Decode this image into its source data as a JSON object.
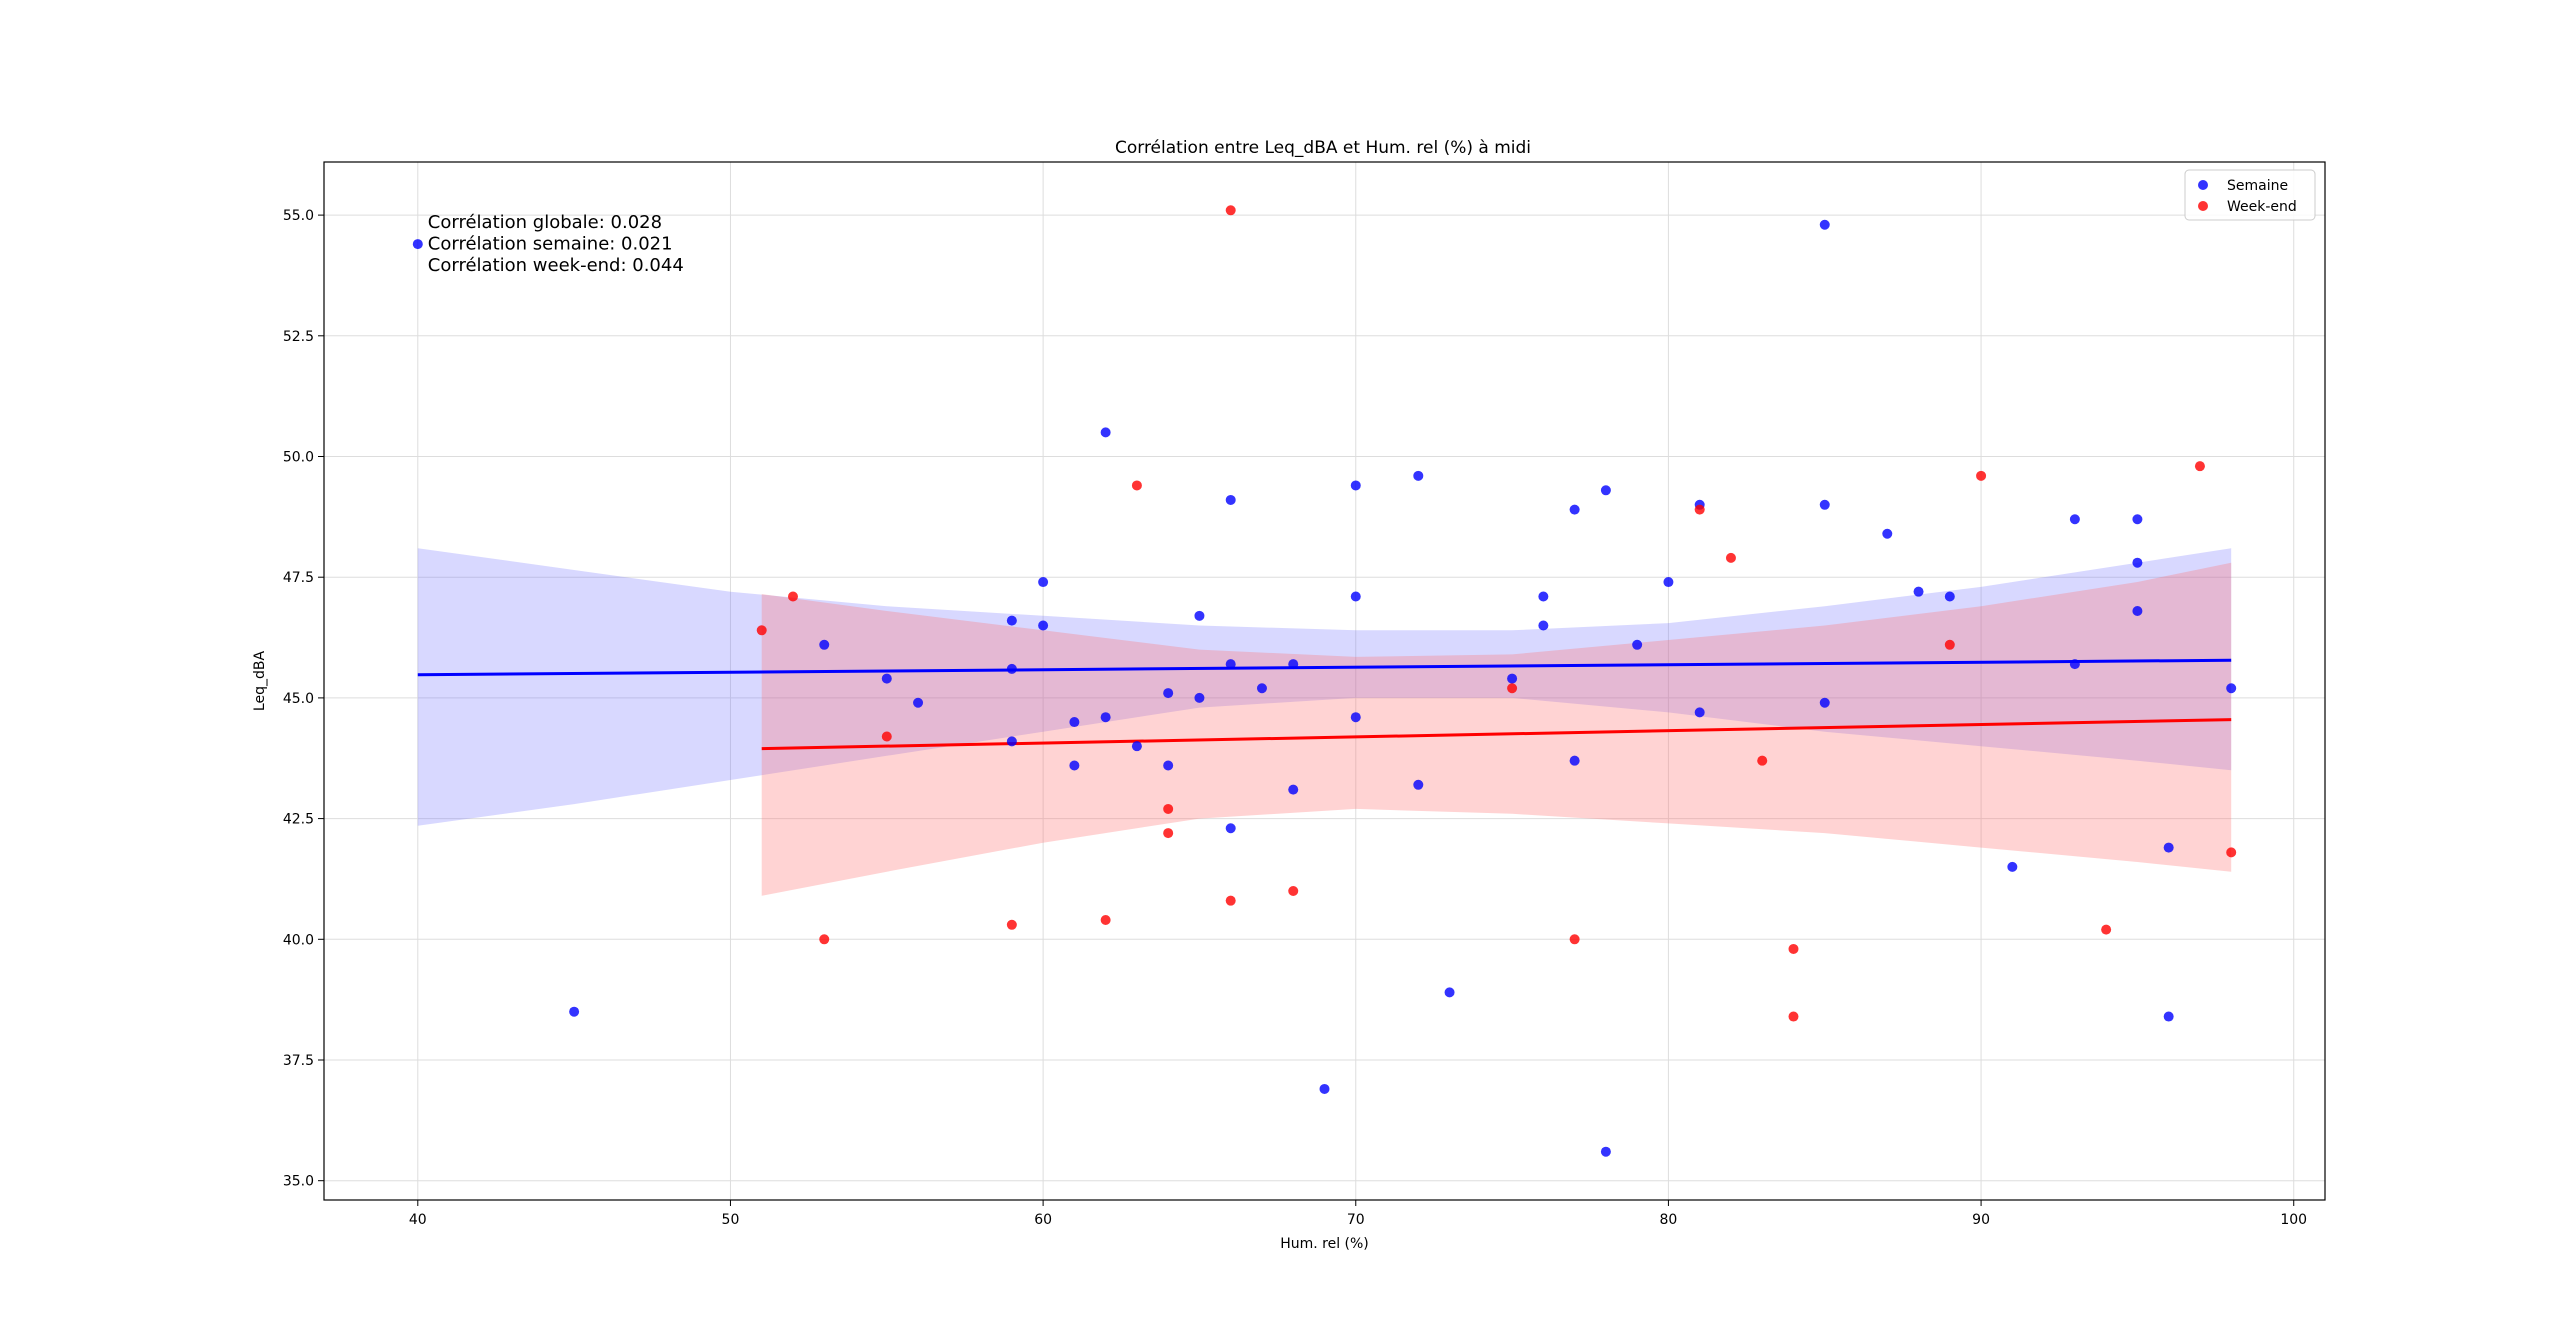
{
  "chart_data": {
    "type": "scatter",
    "title": "Corrélation entre Leq_dBA et Hum. rel (%) à midi",
    "xlabel": "Hum. rel (%)",
    "ylabel": "Leq_dBA",
    "xlim": [
      37,
      101
    ],
    "ylim": [
      34.6,
      56.1
    ],
    "xticks": [
      40,
      50,
      60,
      70,
      80,
      90,
      100
    ],
    "yticks": [
      35.0,
      37.5,
      40.0,
      42.5,
      45.0,
      47.5,
      50.0,
      52.5,
      55.0
    ],
    "grid": true,
    "legend_position": "top-right",
    "annotations": [
      "Corrélation globale: 0.028",
      "Corrélation semaine: 0.021",
      "Corrélation week-end: 0.044"
    ],
    "series": [
      {
        "name": "Semaine",
        "color": "#0000ff",
        "points": [
          [
            40,
            54.4
          ],
          [
            45,
            38.5
          ],
          [
            53,
            46.1
          ],
          [
            55,
            45.4
          ],
          [
            56,
            44.9
          ],
          [
            59,
            46.6
          ],
          [
            59,
            45.6
          ],
          [
            59,
            44.1
          ],
          [
            60,
            47.4
          ],
          [
            60,
            46.5
          ],
          [
            61,
            44.5
          ],
          [
            61,
            43.6
          ],
          [
            62,
            50.5
          ],
          [
            62,
            44.6
          ],
          [
            63,
            44.0
          ],
          [
            64,
            45.1
          ],
          [
            64,
            43.6
          ],
          [
            65,
            46.7
          ],
          [
            65,
            45.0
          ],
          [
            66,
            49.1
          ],
          [
            66,
            45.7
          ],
          [
            66,
            42.3
          ],
          [
            67,
            45.2
          ],
          [
            68,
            45.7
          ],
          [
            68,
            43.1
          ],
          [
            69,
            36.9
          ],
          [
            70,
            49.4
          ],
          [
            70,
            47.1
          ],
          [
            70,
            44.6
          ],
          [
            72,
            49.6
          ],
          [
            72,
            43.2
          ],
          [
            73,
            38.9
          ],
          [
            75,
            45.4
          ],
          [
            76,
            47.1
          ],
          [
            76,
            46.5
          ],
          [
            77,
            48.9
          ],
          [
            77,
            43.7
          ],
          [
            78,
            49.3
          ],
          [
            78,
            35.6
          ],
          [
            79,
            46.1
          ],
          [
            80,
            47.4
          ],
          [
            81,
            49.0
          ],
          [
            81,
            44.7
          ],
          [
            85,
            54.8
          ],
          [
            85,
            49.0
          ],
          [
            85,
            44.9
          ],
          [
            87,
            48.4
          ],
          [
            88,
            47.2
          ],
          [
            89,
            47.1
          ],
          [
            91,
            41.5
          ],
          [
            93,
            48.7
          ],
          [
            93,
            45.7
          ],
          [
            95,
            48.7
          ],
          [
            95,
            47.8
          ],
          [
            95,
            46.8
          ],
          [
            96,
            41.9
          ],
          [
            96,
            38.4
          ],
          [
            98,
            45.2
          ]
        ],
        "regression": {
          "x": [
            40,
            98
          ],
          "y": [
            45.48,
            45.78
          ]
        },
        "ci_band": {
          "x": [
            40,
            45,
            50,
            55,
            60,
            65,
            70,
            75,
            80,
            85,
            90,
            95,
            98
          ],
          "lower": [
            42.35,
            42.8,
            43.3,
            43.8,
            44.3,
            44.8,
            45.0,
            45.0,
            44.7,
            44.3,
            44.0,
            43.7,
            43.5
          ],
          "upper": [
            48.1,
            47.65,
            47.2,
            46.9,
            46.7,
            46.5,
            46.4,
            46.4,
            46.55,
            46.9,
            47.3,
            47.8,
            48.1
          ]
        }
      },
      {
        "name": "Week-end",
        "color": "#ff0000",
        "points": [
          [
            51,
            46.4
          ],
          [
            52,
            47.1
          ],
          [
            53,
            40.0
          ],
          [
            55,
            44.2
          ],
          [
            59,
            40.3
          ],
          [
            62,
            40.4
          ],
          [
            63,
            49.4
          ],
          [
            64,
            42.7
          ],
          [
            64,
            42.2
          ],
          [
            66,
            55.1
          ],
          [
            66,
            40.8
          ],
          [
            68,
            41.0
          ],
          [
            75,
            45.2
          ],
          [
            77,
            40.0
          ],
          [
            81,
            48.9
          ],
          [
            82,
            47.9
          ],
          [
            83,
            43.7
          ],
          [
            84,
            39.8
          ],
          [
            84,
            38.4
          ],
          [
            89,
            46.1
          ],
          [
            90,
            49.6
          ],
          [
            94,
            40.2
          ],
          [
            97,
            49.8
          ],
          [
            98,
            41.8
          ]
        ],
        "regression": {
          "x": [
            51,
            98
          ],
          "y": [
            43.95,
            44.55
          ]
        },
        "ci_band": {
          "x": [
            51,
            55,
            60,
            65,
            70,
            75,
            80,
            85,
            90,
            95,
            98
          ],
          "lower": [
            40.9,
            41.4,
            42.0,
            42.5,
            42.7,
            42.6,
            42.4,
            42.2,
            41.9,
            41.6,
            41.4
          ],
          "upper": [
            47.15,
            46.8,
            46.4,
            46.0,
            45.85,
            45.9,
            46.2,
            46.5,
            46.9,
            47.4,
            47.8
          ]
        }
      }
    ]
  }
}
